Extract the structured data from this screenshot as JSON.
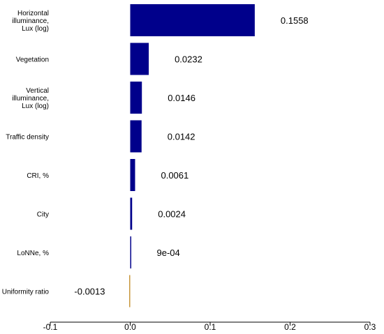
{
  "chart_data": {
    "type": "bar",
    "orientation": "horizontal",
    "categories": [
      [
        "Horizontal",
        "illuminance,",
        "Lux (log)"
      ],
      [
        "Vegetation"
      ],
      [
        "Vertical",
        "illuminance,",
        "Lux (log)"
      ],
      [
        "Traffic density"
      ],
      [
        "CRI, %"
      ],
      [
        "City"
      ],
      [
        "LoNNe, %"
      ],
      [
        "Uniformity ratio"
      ]
    ],
    "values": [
      0.1558,
      0.0232,
      0.0146,
      0.0142,
      0.0061,
      0.0024,
      0.0009,
      -0.0013
    ],
    "value_labels": [
      "0.1558",
      "0.0232",
      "0.0146",
      "0.0142",
      "0.0061",
      "0.0024",
      "9e-04",
      "-0.0013"
    ],
    "xlim": [
      -0.1,
      0.3
    ],
    "xticks": [
      -0.1,
      0.0,
      0.1,
      0.2,
      0.3
    ],
    "xtick_labels": [
      "-0.1",
      "0.0",
      "0.1",
      "0.2",
      "0.3"
    ],
    "grid": false,
    "legend": false,
    "colors": {
      "positive": "#00008b",
      "negative": "#c8963c",
      "axis": "#000000"
    }
  }
}
